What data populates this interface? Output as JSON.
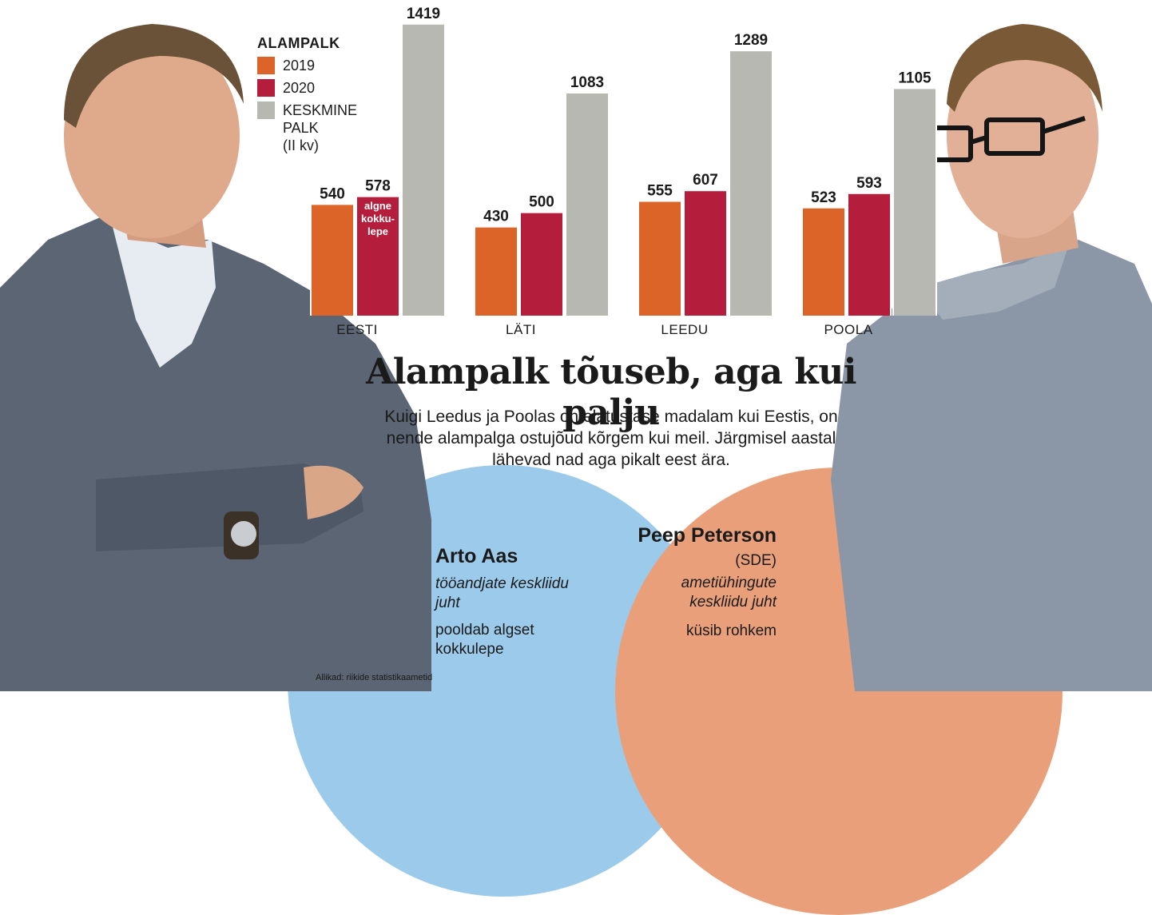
{
  "headline": "Alampalk tõuseb, aga kui palju",
  "lede": "Kuigi Leedus ja Poolas on elatustase madalam kui Eestis, on nende alampalga ostujõud kõrgem kui meil. Järgmisel aastal lähevad nad aga pikalt eest ära.",
  "legend": {
    "title": "ALAMPALK",
    "items": [
      {
        "label": "2019",
        "color": "#dc6428"
      },
      {
        "label": "2020",
        "color": "#b41e3c"
      },
      {
        "label": "KESKMINE\nPALK\n(II kv)",
        "color": "#b8b8b2"
      }
    ]
  },
  "chart_data": {
    "type": "bar",
    "categories": [
      "EESTI",
      "LÄTI",
      "LEEDU",
      "POOLA"
    ],
    "series": [
      {
        "name": "2019",
        "color": "#dc6428",
        "values": [
          540,
          430,
          555,
          523
        ]
      },
      {
        "name": "2020",
        "color": "#b41e3c",
        "values": [
          578,
          500,
          607,
          593
        ]
      },
      {
        "name": "KESKMINE PALK (II kv)",
        "color": "#b8b8b2",
        "values": [
          1419,
          1083,
          1289,
          1105
        ]
      }
    ],
    "annotations": [
      {
        "category": "EESTI",
        "series": "2020",
        "text": "algne kokku-lepe"
      }
    ],
    "ylim": [
      0,
      1500
    ],
    "legend_position": "top-left",
    "grid": false
  },
  "people": {
    "left": {
      "name": "Arto Aas",
      "role": "tööandjate keskliidu juht",
      "stance": "pooldab algset kokkulepe",
      "circle_color": "#9ccaea"
    },
    "right": {
      "name": "Peep Peterson",
      "party": "(SDE)",
      "role": "ametiühingute keskliidu juht",
      "stance": "küsib rohkem",
      "circle_color": "#e9a07a"
    }
  },
  "source": "Allikad: riikide statistikaametid"
}
